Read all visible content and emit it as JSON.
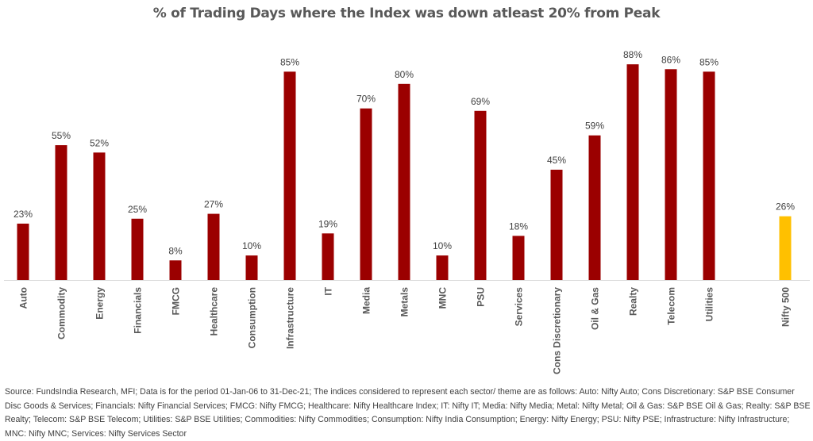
{
  "chart_data": {
    "type": "bar",
    "title": "% of Trading Days where the Index was down atleast 20% from Peak",
    "xlabel": "",
    "ylabel": "",
    "ylim": [
      0,
      90
    ],
    "grid": false,
    "categories": [
      "Auto",
      "Commodity",
      "Energy",
      "Financials",
      "FMCG",
      "Healthcare",
      "Consumption",
      "Infrastructure",
      "IT",
      "Media",
      "Metals",
      "MNC",
      "PSU",
      "Services",
      "Cons Discretionary",
      "Oil & Gas",
      "Realty",
      "Telecom",
      "Utilities",
      "Nifty 500"
    ],
    "values": [
      23,
      55,
      52,
      25,
      8,
      27,
      10,
      85,
      19,
      70,
      80,
      10,
      69,
      18,
      45,
      59,
      88,
      86,
      85,
      26
    ],
    "data_labels": [
      "23%",
      "55%",
      "52%",
      "25%",
      "8%",
      "27%",
      "10%",
      "85%",
      "19%",
      "70%",
      "80%",
      "10%",
      "69%",
      "18%",
      "45%",
      "59%",
      "88%",
      "86%",
      "85%",
      "26%"
    ],
    "colors": {
      "sector": "#9B0000",
      "benchmark": "#FFC000"
    },
    "benchmark_category": "Nifty 500"
  },
  "source": "Source: FundsIndia Research, MFI; Data is for the period 01-Jan-06 to 31-Dec-21; The indices considered to represent each sector/ theme are as follows: Auto: Nifty Auto; Cons Discretionary: S&P BSE Consumer Disc Goods & Services; Financials: Nifty Financial Services; FMCG: Nifty FMCG; Healthcare: Nifty Healthcare Index; IT: Nifty IT; Media: Nifty Media; Metal: Nifty Metal; Oil & Gas: S&P BSE Oil & Gas; Realty: S&P BSE Realty; Telecom: S&P BSE Telecom; Utilities: S&P BSE Utilities; Commodities: Nifty Commodities; Consumption: Nifty India Consumption; Energy: Nifty Energy; PSU: Nifty PSE; Infrastructure: Nifty Infrastructure; MNC: Nifty MNC; Services: Nifty Services Sector"
}
